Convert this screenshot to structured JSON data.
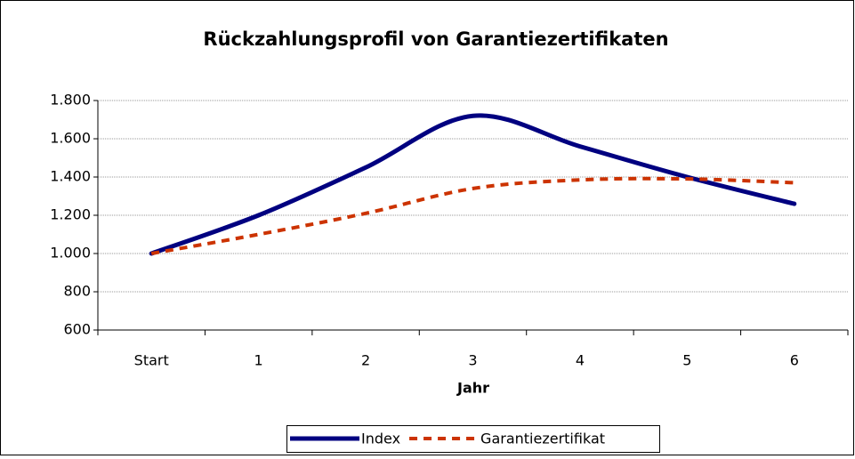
{
  "chart_data": {
    "type": "line",
    "title": "Rückzahlungsprofil von Garantiezertifikaten",
    "x_label": "Jahr",
    "categories": [
      "Start",
      "1",
      "2",
      "3",
      "4",
      "5",
      "6"
    ],
    "series": [
      {
        "name": "Index",
        "color": "#000080",
        "values": [
          1000,
          1200,
          1450,
          1720,
          1560,
          1400,
          1260
        ]
      },
      {
        "name": "Garantiezertifikat",
        "color": "#cc3300",
        "values": [
          1000,
          1100,
          1210,
          1340,
          1385,
          1390,
          1370
        ]
      }
    ],
    "ylim": [
      600,
      1800
    ],
    "yticks": [
      600,
      800,
      {
        "value": 1000,
        "label": "1.000"
      },
      {
        "value": 1200,
        "label": "1.200"
      },
      {
        "value": 1400,
        "label": "1.400"
      },
      {
        "value": 1600,
        "label": "1.600"
      },
      {
        "value": 1800,
        "label": "1.800"
      }
    ],
    "grid": true,
    "legend": "bottom"
  }
}
